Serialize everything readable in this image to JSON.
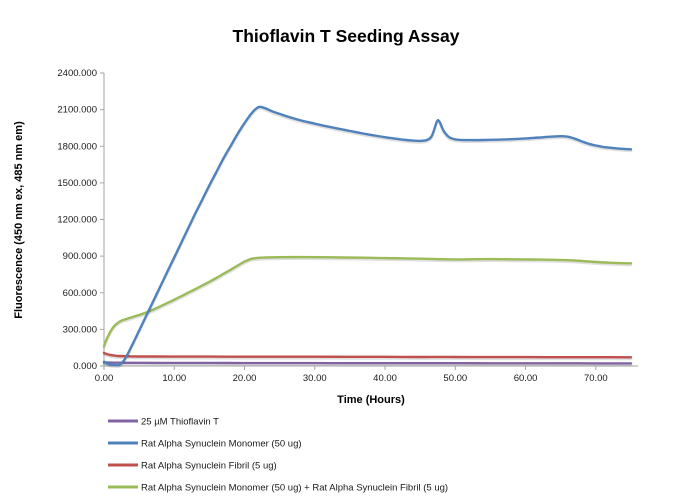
{
  "chart_data": {
    "type": "line",
    "title": "Thioflavin T Seeding Assay",
    "xlabel": "Time (Hours)",
    "ylabel": "Fluorescence (450 nm ex, 485 nm em)",
    "xlim": [
      0,
      76
    ],
    "ylim": [
      0,
      2400
    ],
    "grid": false,
    "legend_position": "bottom-left",
    "x_tick_values": [
      0,
      10,
      20,
      30,
      40,
      50,
      60,
      70
    ],
    "x_ticks": [
      "0.00",
      "10.00",
      "20.00",
      "30.00",
      "40.00",
      "50.00",
      "60.00",
      "70.00"
    ],
    "y_tick_values": [
      0,
      300,
      600,
      900,
      1200,
      1500,
      1800,
      2100,
      2400
    ],
    "y_ticks": [
      "0.000",
      "300.000",
      "600.000",
      "900.000",
      "1200.000",
      "1500.000",
      "1800.000",
      "2100.000",
      "2400.000"
    ],
    "series": [
      {
        "name": "25 µM Thioflavin T",
        "color": "#8064A2",
        "points": [
          [
            0,
            30
          ],
          [
            2,
            27
          ],
          [
            5,
            26
          ],
          [
            10,
            25
          ],
          [
            15,
            25
          ],
          [
            20,
            24
          ],
          [
            25,
            24
          ],
          [
            30,
            24
          ],
          [
            35,
            23
          ],
          [
            40,
            23
          ],
          [
            45,
            23
          ],
          [
            50,
            23
          ],
          [
            55,
            22
          ],
          [
            60,
            22
          ],
          [
            65,
            22
          ],
          [
            70,
            21
          ],
          [
            75,
            21
          ]
        ]
      },
      {
        "name": "Rat Alpha Synuclein Monomer (50 ug)",
        "color": "#4F81BD",
        "points": [
          [
            0,
            35
          ],
          [
            0.7,
            14
          ],
          [
            1.5,
            8
          ],
          [
            2.2,
            10
          ],
          [
            3,
            60
          ],
          [
            4,
            170
          ],
          [
            5,
            290
          ],
          [
            6,
            410
          ],
          [
            7,
            530
          ],
          [
            8,
            650
          ],
          [
            9,
            770
          ],
          [
            10,
            890
          ],
          [
            11,
            1010
          ],
          [
            12,
            1130
          ],
          [
            13,
            1250
          ],
          [
            14,
            1365
          ],
          [
            15,
            1480
          ],
          [
            16,
            1590
          ],
          [
            17,
            1700
          ],
          [
            18,
            1800
          ],
          [
            19,
            1900
          ],
          [
            20,
            1990
          ],
          [
            21,
            2070
          ],
          [
            21.8,
            2115
          ],
          [
            22.3,
            2122
          ],
          [
            23,
            2110
          ],
          [
            24,
            2085
          ],
          [
            25,
            2065
          ],
          [
            26,
            2045
          ],
          [
            27,
            2028
          ],
          [
            28,
            2012
          ],
          [
            29,
            1998
          ],
          [
            30,
            1985
          ],
          [
            31,
            1972
          ],
          [
            32,
            1960
          ],
          [
            33,
            1948
          ],
          [
            34,
            1936
          ],
          [
            35,
            1925
          ],
          [
            36,
            1914
          ],
          [
            37,
            1903
          ],
          [
            38,
            1893
          ],
          [
            39,
            1883
          ],
          [
            40,
            1874
          ],
          [
            41,
            1866
          ],
          [
            42,
            1858
          ],
          [
            43,
            1851
          ],
          [
            44,
            1846
          ],
          [
            45,
            1844
          ],
          [
            46,
            1852
          ],
          [
            46.7,
            1890
          ],
          [
            47.4,
            2005
          ],
          [
            47.8,
            1995
          ],
          [
            48.3,
            1930
          ],
          [
            49,
            1880
          ],
          [
            49.7,
            1860
          ],
          [
            50.5,
            1853
          ],
          [
            52,
            1850
          ],
          [
            54,
            1851
          ],
          [
            56,
            1854
          ],
          [
            58,
            1858
          ],
          [
            60,
            1864
          ],
          [
            62,
            1872
          ],
          [
            63.5,
            1878
          ],
          [
            65,
            1882
          ],
          [
            66,
            1878
          ],
          [
            67,
            1862
          ],
          [
            68,
            1840
          ],
          [
            69,
            1820
          ],
          [
            70,
            1806
          ],
          [
            71,
            1795
          ],
          [
            72,
            1788
          ],
          [
            73,
            1782
          ],
          [
            74,
            1778
          ],
          [
            75,
            1775
          ]
        ]
      },
      {
        "name": "Rat Alpha Synuclein Fibril (5 ug)",
        "color": "#C0504D",
        "points": [
          [
            0,
            107
          ],
          [
            0.5,
            96
          ],
          [
            1,
            89
          ],
          [
            1.5,
            85
          ],
          [
            2,
            82
          ],
          [
            3,
            80
          ],
          [
            4,
            79
          ],
          [
            5,
            78
          ],
          [
            7,
            78
          ],
          [
            10,
            77
          ],
          [
            15,
            77
          ],
          [
            20,
            76
          ],
          [
            25,
            76
          ],
          [
            30,
            76
          ],
          [
            35,
            75
          ],
          [
            40,
            75
          ],
          [
            45,
            74
          ],
          [
            50,
            74
          ],
          [
            55,
            73
          ],
          [
            60,
            73
          ],
          [
            65,
            72
          ],
          [
            70,
            72
          ],
          [
            75,
            71
          ]
        ]
      },
      {
        "name": "Rat Alpha Synuclein Monomer (50 ug) + Rat Alpha Synuclein Fibril (5 ug)",
        "color": "#9BBB59",
        "points": [
          [
            0,
            165
          ],
          [
            0.5,
            235
          ],
          [
            1,
            290
          ],
          [
            1.5,
            330
          ],
          [
            2,
            355
          ],
          [
            2.5,
            372
          ],
          [
            3,
            382
          ],
          [
            4,
            400
          ],
          [
            5,
            418
          ],
          [
            6,
            438
          ],
          [
            7,
            462
          ],
          [
            8,
            488
          ],
          [
            9,
            515
          ],
          [
            10,
            543
          ],
          [
            11,
            572
          ],
          [
            12,
            601
          ],
          [
            13,
            630
          ],
          [
            14,
            660
          ],
          [
            15,
            690
          ],
          [
            16,
            722
          ],
          [
            17,
            755
          ],
          [
            18,
            788
          ],
          [
            19,
            822
          ],
          [
            20,
            855
          ],
          [
            21,
            878
          ],
          [
            22,
            886
          ],
          [
            23,
            889
          ],
          [
            25,
            891
          ],
          [
            28,
            892
          ],
          [
            31,
            891
          ],
          [
            34,
            889
          ],
          [
            37,
            887
          ],
          [
            40,
            884
          ],
          [
            43,
            881
          ],
          [
            46,
            878
          ],
          [
            48,
            875
          ],
          [
            50,
            873
          ],
          [
            52,
            874
          ],
          [
            55,
            876
          ],
          [
            58,
            874
          ],
          [
            61,
            872
          ],
          [
            64,
            870
          ],
          [
            66,
            867
          ],
          [
            68,
            860
          ],
          [
            70,
            852
          ],
          [
            72,
            846
          ],
          [
            74,
            842
          ],
          [
            75,
            841
          ]
        ]
      }
    ]
  }
}
